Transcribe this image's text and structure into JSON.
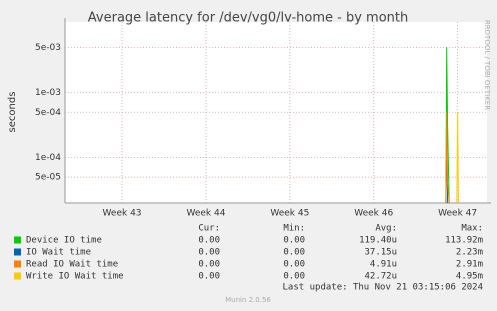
{
  "chart_data": {
    "type": "line",
    "title": "Average latency for /dev/vg0/lv-home - by month",
    "y_label": "seconds",
    "log_y": true,
    "grid": true,
    "x": [
      46.82,
      46.86,
      46.87,
      46.88,
      46.9,
      46.95,
      46.99,
      47.0,
      47.01,
      47.03
    ],
    "xlim": [
      42.32,
      47.35
    ],
    "xticks": [
      {
        "value": 43,
        "label": "Week 43"
      },
      {
        "value": 44,
        "label": "Week 44"
      },
      {
        "value": 45,
        "label": "Week 45"
      },
      {
        "value": 46,
        "label": "Week 46"
      },
      {
        "value": 47,
        "label": "Week 47"
      }
    ],
    "ylim": [
      2e-05,
      0.0123
    ],
    "yticks": [
      {
        "value": 5e-05,
        "label": "5e-05"
      },
      {
        "value": 0.0001,
        "label": "1e-04"
      },
      {
        "value": 0.0005,
        "label": "5e-04"
      },
      {
        "value": 0.001,
        "label": "1e-03"
      },
      {
        "value": 0.005,
        "label": "5e-03"
      }
    ],
    "series": [
      {
        "name": "Device IO time",
        "color": "#00cc00",
        "values": [
          null,
          2e-05,
          0.005,
          0.0003,
          2e-05,
          null,
          null,
          null,
          null,
          null
        ]
      },
      {
        "name": "IO Wait time",
        "color": "#0066b3",
        "values": [
          null,
          2e-05,
          0.0002,
          2e-05,
          null,
          null,
          null,
          null,
          null,
          null
        ]
      },
      {
        "name": "Read IO Wait time",
        "color": "#ff8000",
        "values": [
          null,
          2e-05,
          0.0005,
          4e-05,
          2e-05,
          null,
          null,
          null,
          null,
          null
        ]
      },
      {
        "name": "Write IO Wait time",
        "color": "#ffcc00",
        "values": [
          null,
          null,
          null,
          null,
          null,
          null,
          2e-05,
          0.0005,
          2e-05,
          null
        ]
      }
    ]
  },
  "legend_columns": [
    "Cur:",
    "Min:",
    "Avg:",
    "Max:"
  ],
  "legend_stats": [
    [
      "0.00",
      "0.00",
      "119.40u",
      "113.92m"
    ],
    [
      "0.00",
      "0.00",
      "37.15u",
      "2.23m"
    ],
    [
      "0.00",
      "0.00",
      "4.91u",
      "2.91m"
    ],
    [
      "0.00",
      "0.00",
      "42.72u",
      "4.95m"
    ]
  ],
  "last_update": "Last update: Thu Nov 21 03:15:06 2024",
  "credit": "Munin 2.0.56",
  "watermark": "RRDTOOL / TOBI OETIKER"
}
